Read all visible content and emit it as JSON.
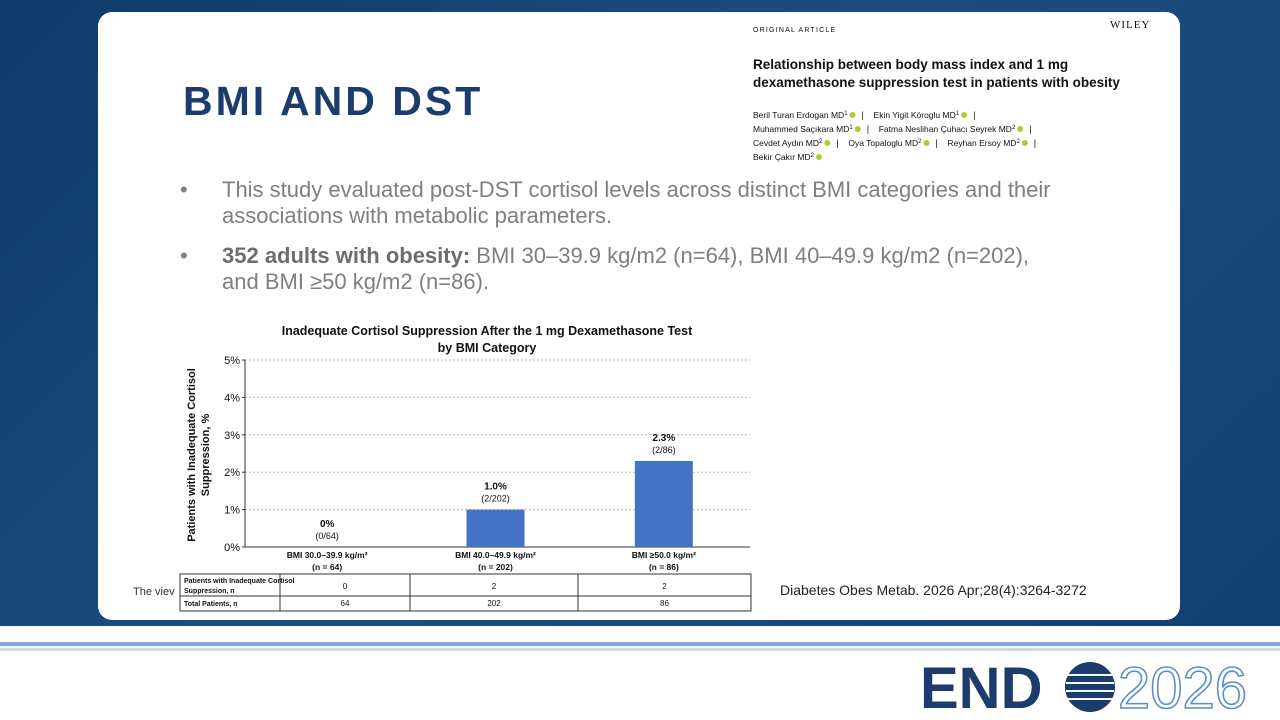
{
  "slide": {
    "title": "BMI AND DST",
    "bullet_1": "This study evaluated post-DST cortisol levels across distinct BMI categories and their associations with metabolic parameters.",
    "bullet_2_bold": "352 adults with obesity:",
    "bullet_2_rest": "BMI 30–39.9 kg/m2 (n=64), BMI 40–49.9 kg/m2 (n=202), and BMI ≥50 kg/m2 (n=86).",
    "partial_text": "The viev",
    "citation": "Diabetes Obes Metab. 2026 Apr;28(4):3264-3272"
  },
  "article": {
    "label": "ORIGINAL ARTICLE",
    "publisher": "WILEY",
    "title_lines": [
      "Relationship between body mass index and 1 mg",
      "dexamethasone suppression test in patients with obesity"
    ],
    "authors": [
      {
        "name": "Beril Turan Erdogan MD",
        "sup": "1"
      },
      {
        "name": "Ekin Yigit Köroglu MD",
        "sup": "1"
      },
      {
        "name": "Muhammed Saçıkara MD",
        "sup": "1"
      },
      {
        "name": "Fatma Neslihan Çuhacı Seyrek MD",
        "sup": "2"
      },
      {
        "name": "Cevdet Aydın MD",
        "sup": "2"
      },
      {
        "name": "Oya Topaloglu MD",
        "sup": "2"
      },
      {
        "name": "Reyhan Ersoy MD",
        "sup": "2"
      },
      {
        "name": "Bekir Çakır MD",
        "sup": "2"
      }
    ]
  },
  "logo": {
    "left": "END",
    "right": "2026"
  },
  "chart_data": {
    "type": "bar",
    "title_lines": [
      "Inadequate Cortisol Suppression After the 1 mg Dexamethasone Test",
      "by BMI Category"
    ],
    "y_label_lines": [
      "Patients with Inadequate Cortisol",
      "Suppression, %"
    ],
    "categories": [
      "BMI 30.0–39.9 kg/m²",
      "BMI 40.0–49.9 kg/m²",
      "BMI ≥50.0 kg/m²"
    ],
    "category_notes": [
      "(n = 64)",
      "(n = 202)",
      "(n = 86)"
    ],
    "values": [
      0,
      1.0,
      2.3
    ],
    "value_labels": [
      "0%",
      "1.0%",
      "2.3%"
    ],
    "count_labels": [
      "(0/64)",
      "(2/202)",
      "(2/86)"
    ],
    "color": "#4472c4",
    "ylim": [
      0,
      5
    ],
    "yticks": [
      {
        "value": 0,
        "label": "0%"
      },
      {
        "value": 1,
        "label": "1%"
      },
      {
        "value": 2,
        "label": "2%"
      },
      {
        "value": 3,
        "label": "3%"
      },
      {
        "value": 4,
        "label": "4%"
      },
      {
        "value": 5,
        "label": "5%"
      }
    ],
    "grid": true,
    "table": {
      "rows": [
        {
          "label": "Patients with Inadequate Cortisol Suppression, n",
          "values": [
            0,
            2,
            2
          ]
        },
        {
          "label": "Total Patients, n",
          "values": [
            64,
            202,
            86
          ]
        }
      ]
    }
  }
}
